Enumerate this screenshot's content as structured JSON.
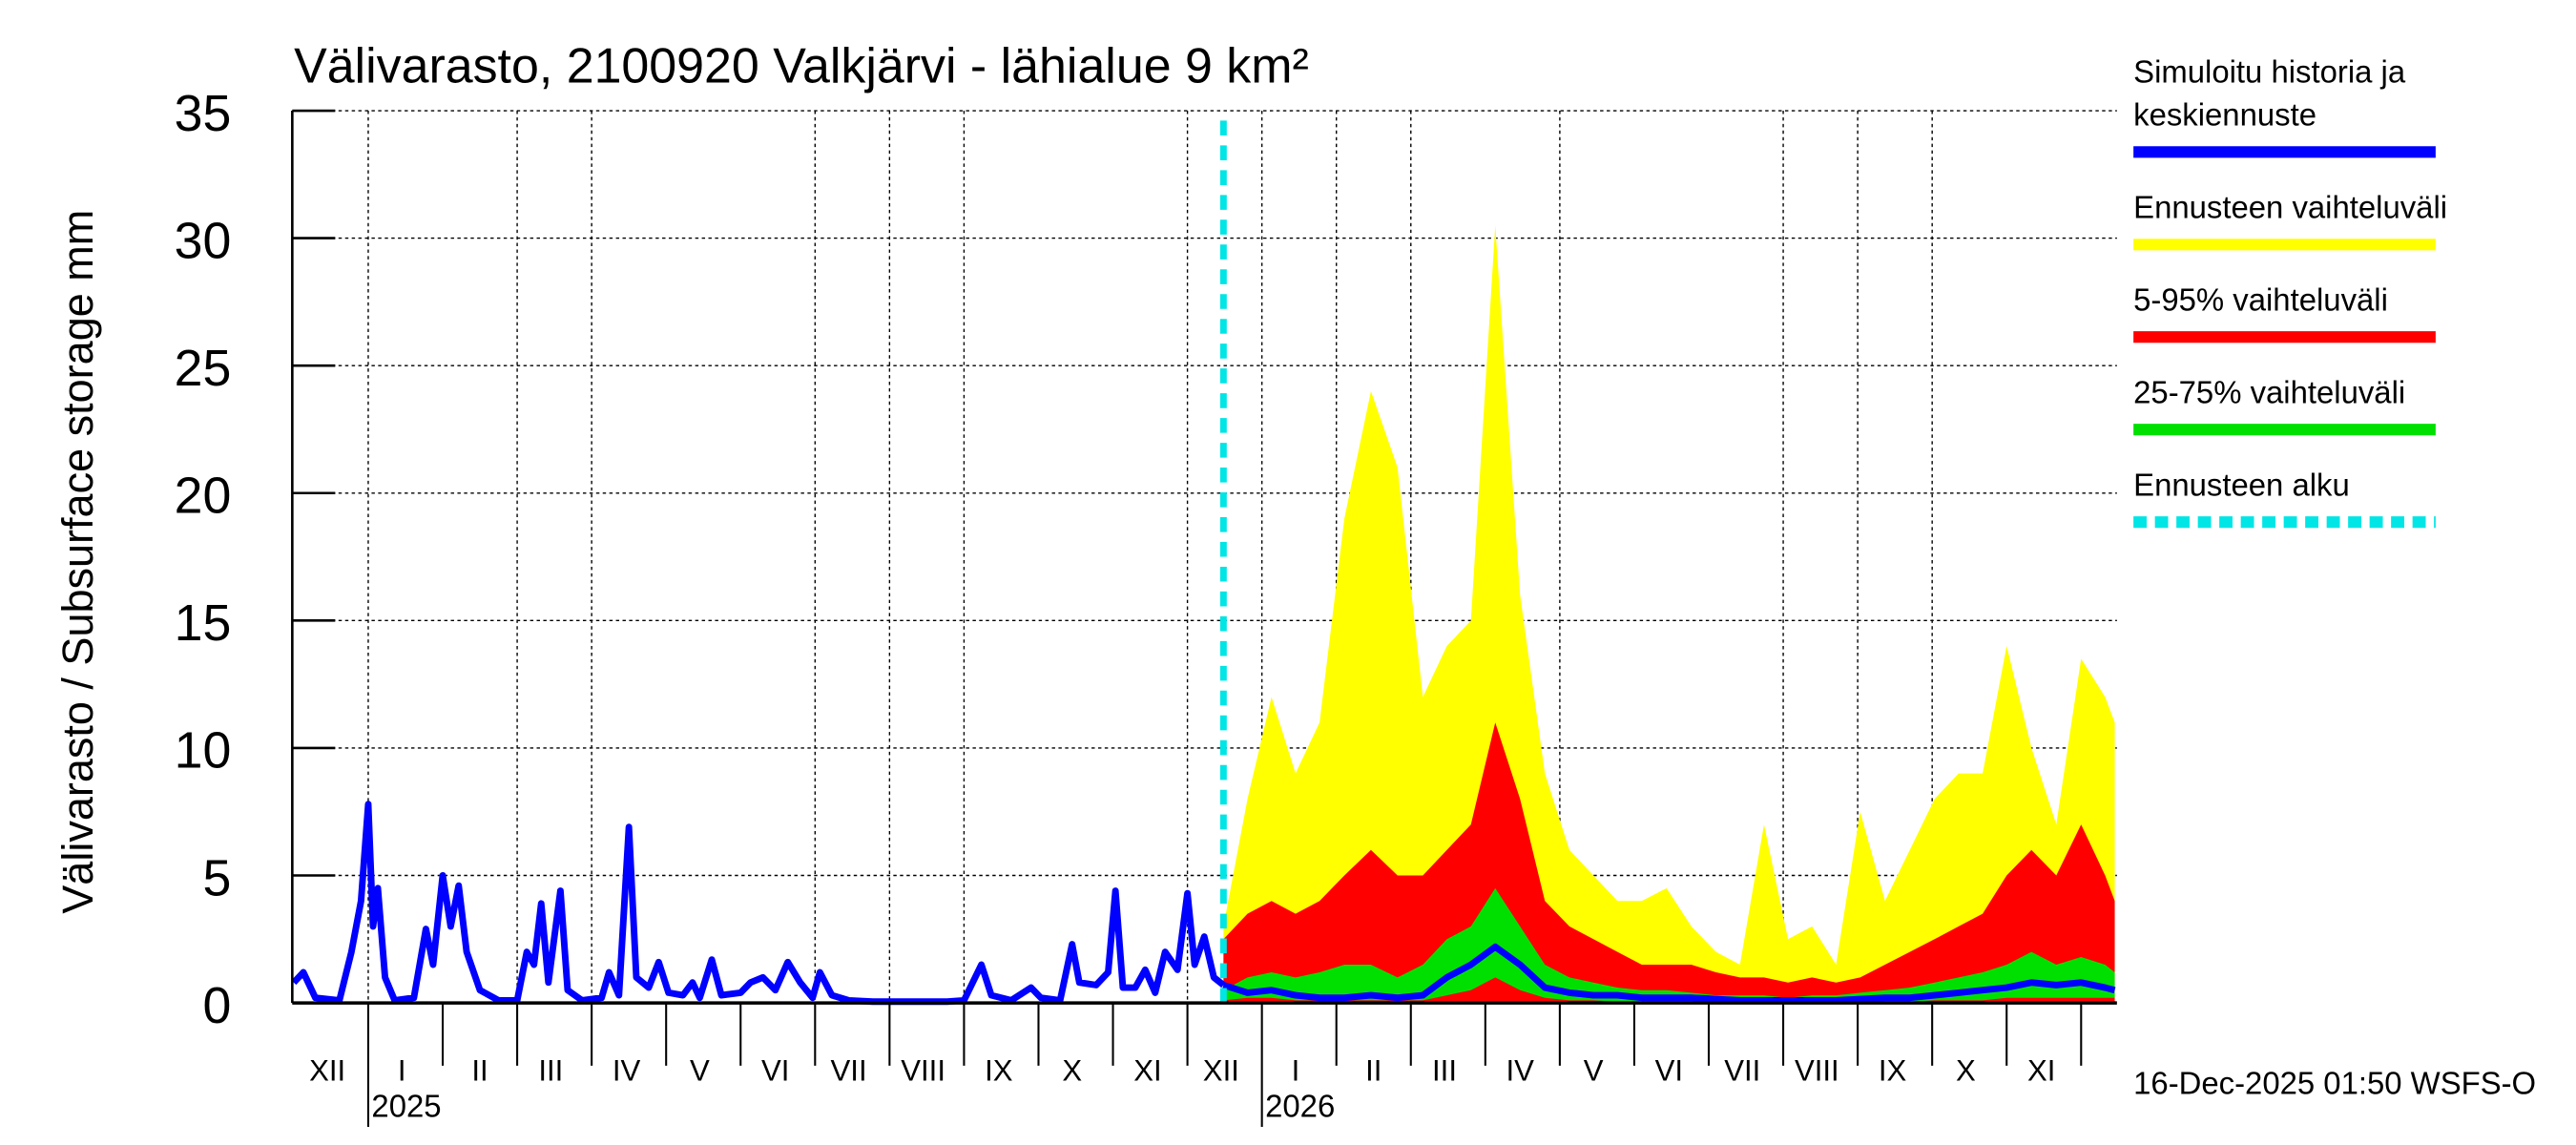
{
  "chart_data": {
    "type": "area",
    "title": "Välivarasto, 2100920 Valkjärvi - lähialue 9 km²",
    "ylabel": "Välivarasto / Subsurface storage  mm",
    "xlabel": "",
    "ylim": [
      0,
      35
    ],
    "xlim": [
      "2024-12-01",
      "2026-12-15"
    ],
    "yticks": [
      "0",
      "5",
      "10",
      "15",
      "20",
      "25",
      "30",
      "35"
    ],
    "month_labels": [
      {
        "label": "XII",
        "date": "2024-12-15"
      },
      {
        "label": "I",
        "date": "2025-01-15"
      },
      {
        "label": "II",
        "date": "2025-02-15"
      },
      {
        "label": "III",
        "date": "2025-03-15"
      },
      {
        "label": "IV",
        "date": "2025-04-15"
      },
      {
        "label": "V",
        "date": "2025-05-15"
      },
      {
        "label": "VI",
        "date": "2025-06-15"
      },
      {
        "label": "VII",
        "date": "2025-07-15"
      },
      {
        "label": "VIII",
        "date": "2025-08-15"
      },
      {
        "label": "IX",
        "date": "2025-09-15"
      },
      {
        "label": "X",
        "date": "2025-10-15"
      },
      {
        "label": "XI",
        "date": "2025-11-15"
      },
      {
        "label": "XII",
        "date": "2025-12-15"
      },
      {
        "label": "I",
        "date": "2026-01-15"
      },
      {
        "label": "II",
        "date": "2026-02-15"
      },
      {
        "label": "III",
        "date": "2026-03-15"
      },
      {
        "label": "IV",
        "date": "2026-04-15"
      },
      {
        "label": "V",
        "date": "2026-05-15"
      },
      {
        "label": "VI",
        "date": "2026-06-15"
      },
      {
        "label": "VII",
        "date": "2026-07-15"
      },
      {
        "label": "VIII",
        "date": "2026-08-15"
      },
      {
        "label": "IX",
        "date": "2026-09-15"
      },
      {
        "label": "X",
        "date": "2026-10-15"
      },
      {
        "label": "XI",
        "date": "2026-11-15"
      }
    ],
    "year_labels": [
      {
        "label": "2025",
        "date": "2025-01-01"
      },
      {
        "label": "2026",
        "date": "2026-01-01"
      }
    ],
    "grid": true,
    "legend_placement": "right",
    "legend": [
      {
        "label": "Simuloitu historia ja keskiennuste",
        "lines": [
          "Simuloitu historia ja",
          "keskiennuste"
        ],
        "color": "#0000ff",
        "style": "solid"
      },
      {
        "label": "Ennusteen vaihteluväli",
        "lines": [
          "Ennusteen vaihteluväli"
        ],
        "color": "#ffff00",
        "style": "solid"
      },
      {
        "label": "5-95% vaihteluväli",
        "lines": [
          "5-95% vaihteluväli"
        ],
        "color": "#ff0000",
        "style": "solid"
      },
      {
        "label": "25-75% vaihteluväli",
        "lines": [
          "25-75% vaihteluväli"
        ],
        "color": "#00e000",
        "style": "solid"
      },
      {
        "label": "Ennusteen alku",
        "lines": [
          "Ennusteen alku"
        ],
        "color": "#00e5e5",
        "style": "dashed"
      }
    ],
    "forecast_start": "2025-12-16",
    "history": {
      "name": "Simuloitu historia ja keskiennuste",
      "x": [
        "2024-12-01",
        "2024-12-05",
        "2024-12-10",
        "2024-12-20",
        "2024-12-25",
        "2024-12-29",
        "2025-01-01",
        "2025-01-03",
        "2025-01-05",
        "2025-01-08",
        "2025-01-12",
        "2025-01-20",
        "2025-01-25",
        "2025-01-28",
        "2025-02-01",
        "2025-02-04",
        "2025-02-07",
        "2025-02-10",
        "2025-02-15",
        "2025-02-22",
        "2025-03-01",
        "2025-03-05",
        "2025-03-08",
        "2025-03-11",
        "2025-03-14",
        "2025-03-19",
        "2025-03-22",
        "2025-03-28",
        "2025-04-05",
        "2025-04-08",
        "2025-04-12",
        "2025-04-16",
        "2025-04-19",
        "2025-04-24",
        "2025-04-28",
        "2025-05-02",
        "2025-05-08",
        "2025-05-12",
        "2025-05-15",
        "2025-05-20",
        "2025-05-24",
        "2025-06-01",
        "2025-06-05",
        "2025-06-10",
        "2025-06-15",
        "2025-06-20",
        "2025-06-25",
        "2025-06-30",
        "2025-07-03",
        "2025-07-08",
        "2025-07-15",
        "2025-07-25",
        "2025-08-10",
        "2025-08-25",
        "2025-09-01",
        "2025-09-05",
        "2025-09-08",
        "2025-09-12",
        "2025-09-20",
        "2025-09-28",
        "2025-10-02",
        "2025-10-10",
        "2025-10-15",
        "2025-10-18",
        "2025-10-25",
        "2025-10-30",
        "2025-11-02",
        "2025-11-05",
        "2025-11-10",
        "2025-11-14",
        "2025-11-18",
        "2025-11-22",
        "2025-11-27",
        "2025-12-01",
        "2025-12-04",
        "2025-12-08",
        "2025-12-12",
        "2025-12-16"
      ],
      "y": [
        0.8,
        1.2,
        0.2,
        0.1,
        2,
        4,
        7.8,
        3,
        4.5,
        1,
        0.1,
        0.2,
        2.9,
        1.5,
        5,
        3,
        4.6,
        2,
        0.5,
        0.1,
        0.1,
        2,
        1.5,
        3.9,
        0.8,
        4.4,
        0.5,
        0.1,
        0.2,
        1.2,
        0.3,
        6.9,
        1,
        0.6,
        1.6,
        0.4,
        0.3,
        0.8,
        0.2,
        1.7,
        0.3,
        0.4,
        0.8,
        1.0,
        0.5,
        1.6,
        0.8,
        0.2,
        1.2,
        0.3,
        0.1,
        0.05,
        0.05,
        0.05,
        0.1,
        0.9,
        1.5,
        0.3,
        0.1,
        0.6,
        0.2,
        0.1,
        2.3,
        0.8,
        0.7,
        1.2,
        4.4,
        0.6,
        0.6,
        1.3,
        0.4,
        2.0,
        1.3,
        4.3,
        1.5,
        2.6,
        1.0,
        0.7
      ]
    },
    "forecast": {
      "x": [
        "2025-12-16",
        "2025-12-26",
        "2026-01-05",
        "2026-01-15",
        "2026-01-25",
        "2026-02-04",
        "2026-02-14",
        "2026-02-24",
        "2026-03-06",
        "2026-03-16",
        "2026-03-26",
        "2026-04-05",
        "2026-04-15",
        "2026-04-25",
        "2026-05-05",
        "2026-05-15",
        "2026-05-25",
        "2026-06-04",
        "2026-06-14",
        "2026-06-24",
        "2026-07-04",
        "2026-07-14",
        "2026-07-24",
        "2026-08-03",
        "2026-08-13",
        "2026-08-23",
        "2026-09-02",
        "2026-09-12",
        "2026-09-22",
        "2026-10-02",
        "2026-10-12",
        "2026-10-22",
        "2026-11-01",
        "2026-11-11",
        "2026-11-21",
        "2026-12-01",
        "2026-12-11",
        "2026-12-15"
      ],
      "max": [
        3,
        8,
        12,
        9,
        11,
        19,
        24,
        21,
        12,
        14,
        15,
        30.5,
        16,
        9,
        6,
        5,
        4,
        4,
        4.5,
        3,
        2,
        1.5,
        7,
        2.5,
        3,
        1.5,
        7.5,
        4,
        6,
        8,
        9,
        9,
        14,
        10,
        7,
        13.5,
        12,
        11
      ],
      "p95": [
        2.5,
        3.5,
        4,
        3.5,
        4,
        5,
        6,
        5,
        5,
        6,
        7,
        11,
        8,
        4,
        3,
        2.5,
        2,
        1.5,
        1.5,
        1.5,
        1.2,
        1,
        1,
        0.8,
        1,
        0.8,
        1,
        1.5,
        2,
        2.5,
        3,
        3.5,
        5,
        6,
        5,
        7,
        5,
        4
      ],
      "p75": [
        0.5,
        1,
        1.2,
        1,
        1.2,
        1.5,
        1.5,
        1,
        1.5,
        2.5,
        3,
        4.5,
        3,
        1.5,
        1,
        0.8,
        0.6,
        0.5,
        0.5,
        0.4,
        0.3,
        0.3,
        0.3,
        0.2,
        0.3,
        0.3,
        0.4,
        0.5,
        0.6,
        0.8,
        1,
        1.2,
        1.5,
        2,
        1.5,
        1.8,
        1.5,
        1.2
      ],
      "p25": [
        0.1,
        0.2,
        0.2,
        0.1,
        0.1,
        0.1,
        0.1,
        0.1,
        0.1,
        0.3,
        0.5,
        1,
        0.5,
        0.2,
        0.1,
        0.1,
        0.05,
        0.05,
        0.05,
        0.05,
        0.05,
        0.05,
        0.05,
        0.05,
        0.05,
        0.05,
        0.05,
        0.05,
        0.05,
        0.1,
        0.1,
        0.1,
        0.2,
        0.2,
        0.2,
        0.2,
        0.2,
        0.2
      ],
      "mean": [
        0.7,
        0.4,
        0.5,
        0.3,
        0.2,
        0.2,
        0.3,
        0.2,
        0.3,
        1,
        1.5,
        2.2,
        1.5,
        0.6,
        0.4,
        0.3,
        0.3,
        0.2,
        0.2,
        0.2,
        0.15,
        0.1,
        0.1,
        0.1,
        0.1,
        0.1,
        0.15,
        0.2,
        0.2,
        0.3,
        0.4,
        0.5,
        0.6,
        0.8,
        0.7,
        0.8,
        0.6,
        0.5
      ]
    },
    "footer": "16-Dec-2025 01:50 WSFS-O"
  }
}
